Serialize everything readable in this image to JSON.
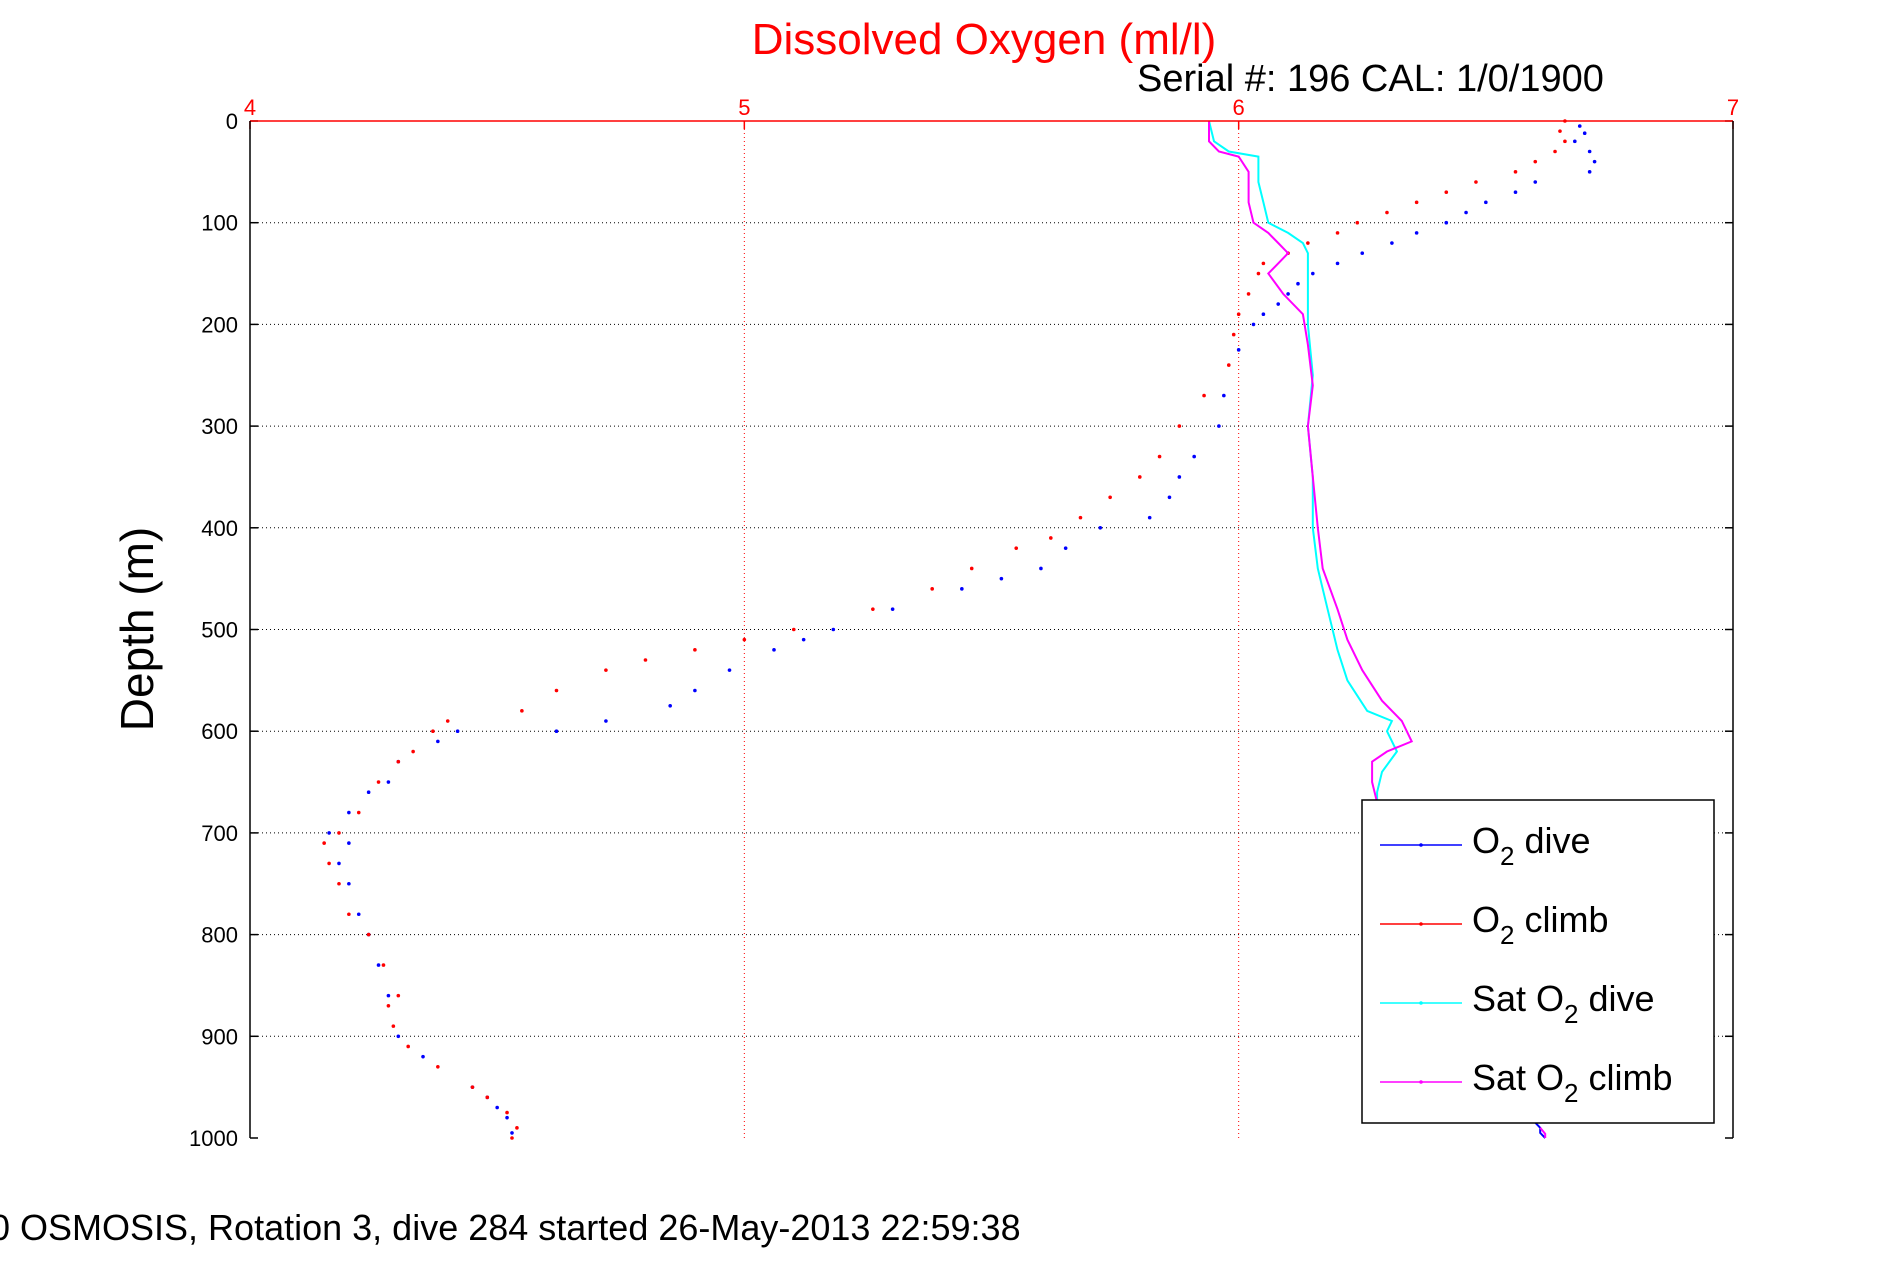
{
  "chart_data": {
    "type": "scatter",
    "title": "Dissolved Oxygen (ml/l)",
    "subtitle": "Serial #: 196  CAL: 1/0/1900",
    "caption": "0 OSMOSIS, Rotation 3, dive 284 started 26-May-2013 22:59:38",
    "xlabel": "",
    "ylabel": "Depth (m)",
    "xlim": [
      4,
      7
    ],
    "ylim": [
      0,
      1000
    ],
    "y_reversed": true,
    "x_axis_position": "top",
    "x_ticks": [
      "4",
      "5",
      "6",
      "7"
    ],
    "y_ticks": [
      "0",
      "100",
      "200",
      "300",
      "400",
      "500",
      "600",
      "700",
      "800",
      "900",
      "1000"
    ],
    "grid": true,
    "legend_position": "bottom-right",
    "colors": {
      "title": "#ff0000",
      "x_axis": "#ff0000",
      "o2_dive": "#0000ff",
      "o2_climb": "#ff0000",
      "sat_dive": "#00ffff",
      "sat_climb": "#ff00ff"
    },
    "legend": [
      {
        "pre": "O",
        "sub": "2",
        "post": " dive",
        "color": "#0000ff"
      },
      {
        "pre": "O",
        "sub": "2",
        "post": " climb",
        "color": "#ff0000"
      },
      {
        "pre": "Sat O",
        "sub": "2",
        "post": " dive",
        "color": "#00ffff"
      },
      {
        "pre": "Sat O",
        "sub": "2",
        "post": " climb",
        "color": "#ff00ff"
      }
    ],
    "series": [
      {
        "key": "o2_dive",
        "style": "dots",
        "points": [
          [
            6.69,
            5
          ],
          [
            6.7,
            12
          ],
          [
            6.68,
            20
          ],
          [
            6.71,
            30
          ],
          [
            6.72,
            40
          ],
          [
            6.71,
            50
          ],
          [
            6.6,
            60
          ],
          [
            6.56,
            70
          ],
          [
            6.5,
            80
          ],
          [
            6.46,
            90
          ],
          [
            6.42,
            100
          ],
          [
            6.36,
            110
          ],
          [
            6.31,
            120
          ],
          [
            6.25,
            130
          ],
          [
            6.2,
            140
          ],
          [
            6.15,
            150
          ],
          [
            6.12,
            160
          ],
          [
            6.1,
            170
          ],
          [
            6.08,
            180
          ],
          [
            6.05,
            190
          ],
          [
            6.03,
            200
          ],
          [
            6.0,
            225
          ],
          [
            5.97,
            270
          ],
          [
            5.96,
            300
          ],
          [
            5.91,
            330
          ],
          [
            5.88,
            350
          ],
          [
            5.86,
            370
          ],
          [
            5.82,
            390
          ],
          [
            5.72,
            400
          ],
          [
            5.65,
            420
          ],
          [
            5.6,
            440
          ],
          [
            5.52,
            450
          ],
          [
            5.44,
            460
          ],
          [
            5.3,
            480
          ],
          [
            5.18,
            500
          ],
          [
            5.12,
            510
          ],
          [
            5.06,
            520
          ],
          [
            4.97,
            540
          ],
          [
            4.9,
            560
          ],
          [
            4.85,
            575
          ],
          [
            4.72,
            590
          ],
          [
            4.62,
            600
          ],
          [
            4.42,
            600
          ],
          [
            4.38,
            610
          ],
          [
            4.3,
            630
          ],
          [
            4.28,
            650
          ],
          [
            4.24,
            660
          ],
          [
            4.2,
            680
          ],
          [
            4.16,
            700
          ],
          [
            4.2,
            710
          ],
          [
            4.18,
            730
          ],
          [
            4.2,
            750
          ],
          [
            4.22,
            780
          ],
          [
            4.24,
            800
          ],
          [
            4.26,
            830
          ],
          [
            4.28,
            860
          ],
          [
            4.3,
            900
          ],
          [
            4.35,
            920
          ],
          [
            4.45,
            950
          ],
          [
            4.48,
            960
          ],
          [
            4.5,
            970
          ],
          [
            4.52,
            980
          ],
          [
            4.53,
            995
          ]
        ]
      },
      {
        "key": "o2_climb",
        "style": "dots",
        "points": [
          [
            6.66,
            0
          ],
          [
            6.65,
            10
          ],
          [
            6.66,
            20
          ],
          [
            6.64,
            30
          ],
          [
            6.6,
            40
          ],
          [
            6.56,
            50
          ],
          [
            6.48,
            60
          ],
          [
            6.42,
            70
          ],
          [
            6.36,
            80
          ],
          [
            6.3,
            90
          ],
          [
            6.24,
            100
          ],
          [
            6.2,
            110
          ],
          [
            6.14,
            120
          ],
          [
            6.1,
            130
          ],
          [
            6.05,
            140
          ],
          [
            6.04,
            150
          ],
          [
            6.02,
            170
          ],
          [
            6.0,
            190
          ],
          [
            5.99,
            210
          ],
          [
            5.98,
            240
          ],
          [
            5.93,
            270
          ],
          [
            5.88,
            300
          ],
          [
            5.84,
            330
          ],
          [
            5.8,
            350
          ],
          [
            5.74,
            370
          ],
          [
            5.68,
            390
          ],
          [
            5.62,
            410
          ],
          [
            5.55,
            420
          ],
          [
            5.46,
            440
          ],
          [
            5.38,
            460
          ],
          [
            5.26,
            480
          ],
          [
            5.1,
            500
          ],
          [
            5.0,
            510
          ],
          [
            4.9,
            520
          ],
          [
            4.8,
            530
          ],
          [
            4.72,
            540
          ],
          [
            4.62,
            560
          ],
          [
            4.55,
            580
          ],
          [
            4.4,
            590
          ],
          [
            4.37,
            600
          ],
          [
            4.33,
            620
          ],
          [
            4.3,
            630
          ],
          [
            4.26,
            650
          ],
          [
            4.22,
            680
          ],
          [
            4.18,
            700
          ],
          [
            4.15,
            710
          ],
          [
            4.16,
            730
          ],
          [
            4.18,
            750
          ],
          [
            4.2,
            780
          ],
          [
            4.24,
            800
          ],
          [
            4.27,
            830
          ],
          [
            4.3,
            860
          ],
          [
            4.28,
            870
          ],
          [
            4.29,
            890
          ],
          [
            4.32,
            910
          ],
          [
            4.38,
            930
          ],
          [
            4.45,
            950
          ],
          [
            4.48,
            960
          ],
          [
            4.52,
            975
          ],
          [
            4.54,
            990
          ],
          [
            4.53,
            1000
          ]
        ]
      },
      {
        "key": "sat_dive",
        "style": "line",
        "points": [
          [
            5.94,
            0
          ],
          [
            5.95,
            20
          ],
          [
            5.98,
            30
          ],
          [
            6.04,
            35
          ],
          [
            6.04,
            60
          ],
          [
            6.05,
            80
          ],
          [
            6.06,
            100
          ],
          [
            6.1,
            110
          ],
          [
            6.13,
            120
          ],
          [
            6.14,
            130
          ],
          [
            6.14,
            200
          ],
          [
            6.15,
            250
          ],
          [
            6.14,
            300
          ],
          [
            6.15,
            350
          ],
          [
            6.15,
            400
          ],
          [
            6.16,
            440
          ],
          [
            6.18,
            480
          ],
          [
            6.2,
            520
          ],
          [
            6.22,
            550
          ],
          [
            6.26,
            580
          ],
          [
            6.31,
            590
          ],
          [
            6.3,
            600
          ],
          [
            6.32,
            620
          ],
          [
            6.29,
            640
          ],
          [
            6.28,
            660
          ],
          [
            6.28,
            680
          ]
        ]
      },
      {
        "key": "sat_climb",
        "style": "line",
        "points": [
          [
            5.94,
            0
          ],
          [
            5.94,
            20
          ],
          [
            5.96,
            30
          ],
          [
            6.0,
            35
          ],
          [
            6.02,
            50
          ],
          [
            6.02,
            80
          ],
          [
            6.03,
            100
          ],
          [
            6.06,
            110
          ],
          [
            6.08,
            120
          ],
          [
            6.1,
            130
          ],
          [
            6.08,
            140
          ],
          [
            6.06,
            150
          ],
          [
            6.09,
            170
          ],
          [
            6.13,
            190
          ],
          [
            6.14,
            220
          ],
          [
            6.15,
            260
          ],
          [
            6.14,
            300
          ],
          [
            6.15,
            350
          ],
          [
            6.16,
            400
          ],
          [
            6.17,
            440
          ],
          [
            6.2,
            480
          ],
          [
            6.22,
            510
          ],
          [
            6.25,
            540
          ],
          [
            6.29,
            570
          ],
          [
            6.33,
            590
          ],
          [
            6.35,
            610
          ],
          [
            6.3,
            620
          ],
          [
            6.27,
            630
          ],
          [
            6.27,
            650
          ],
          [
            6.28,
            670
          ]
        ]
      },
      {
        "key": "bottom_segment",
        "style": "line",
        "color": "#0000ff",
        "points": [
          [
            6.6,
            985
          ],
          [
            6.61,
            990
          ],
          [
            6.61,
            995
          ],
          [
            6.62,
            1000
          ]
        ]
      },
      {
        "key": "bottom_segment_2",
        "style": "line",
        "color": "#ff00ff",
        "points": [
          [
            6.61,
            990
          ],
          [
            6.62,
            996
          ],
          [
            6.62,
            1000
          ]
        ]
      }
    ]
  }
}
